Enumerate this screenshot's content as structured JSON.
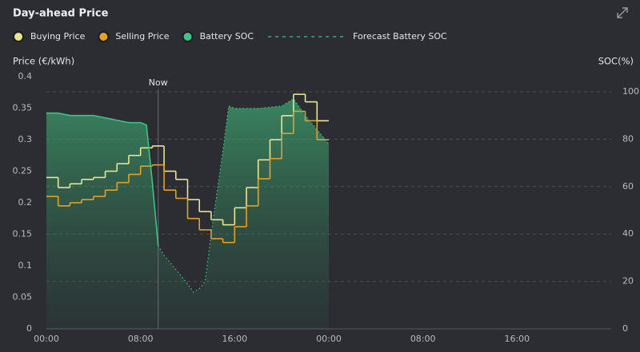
{
  "chart_data": {
    "type": "line",
    "title": "Day-ahead Price",
    "ylabel": "Price (€/kWh)",
    "y2label": "SOC(%)",
    "xlim": [
      0,
      48
    ],
    "xticks": [
      {
        "value": 0,
        "label": "00:00"
      },
      {
        "value": 8,
        "label": "08:00"
      },
      {
        "value": 16,
        "label": "16:00"
      },
      {
        "value": 24,
        "label": "00:00"
      },
      {
        "value": 32,
        "label": "08:00"
      },
      {
        "value": 40,
        "label": "16:00"
      }
    ],
    "ylim": [
      0,
      0.4
    ],
    "yticks": [
      0,
      0.05,
      0.1,
      0.15,
      0.2,
      0.25,
      0.3,
      0.35,
      0.4
    ],
    "y2lim": [
      0,
      106.4
    ],
    "y2ticks": [
      0,
      20,
      40,
      60,
      80,
      100
    ],
    "grid": true,
    "annotation": {
      "x": 9.5,
      "label": "Now"
    },
    "series": [
      {
        "name": "Buying Price",
        "color": "#e9e68c",
        "step": true,
        "x": [
          0,
          1,
          2,
          3,
          4,
          5,
          6,
          7,
          8,
          9,
          10,
          11,
          12,
          13,
          14,
          15,
          16,
          17,
          18,
          19,
          20,
          21,
          22,
          23
        ],
        "values": [
          0.24,
          0.224,
          0.23,
          0.237,
          0.24,
          0.25,
          0.262,
          0.275,
          0.287,
          0.29,
          0.25,
          0.237,
          0.205,
          0.186,
          0.173,
          0.165,
          0.192,
          0.224,
          0.268,
          0.3,
          0.338,
          0.372,
          0.36,
          0.33
        ]
      },
      {
        "name": "Selling Price",
        "color": "#e3a226",
        "step": true,
        "x": [
          0,
          1,
          2,
          3,
          4,
          5,
          6,
          7,
          8,
          9,
          10,
          11,
          12,
          13,
          14,
          15,
          16,
          17,
          18,
          19,
          20,
          21,
          22,
          23
        ],
        "values": [
          0.21,
          0.195,
          0.2,
          0.205,
          0.21,
          0.22,
          0.232,
          0.245,
          0.258,
          0.26,
          0.22,
          0.207,
          0.175,
          0.157,
          0.143,
          0.137,
          0.162,
          0.195,
          0.238,
          0.27,
          0.31,
          0.345,
          0.33,
          0.3
        ]
      },
      {
        "name": "Battery SOC",
        "color": "#3fc284",
        "axis": "y2",
        "x": [
          0,
          1,
          2,
          3,
          4,
          5,
          6,
          7,
          8,
          8.5,
          9,
          9.5
        ],
        "values": [
          91,
          91,
          90,
          90,
          90,
          89,
          88,
          87,
          87,
          86,
          62,
          35
        ]
      },
      {
        "name": "Forecast Battery SOC",
        "color": "#3fc284",
        "axis": "y2",
        "dashed": true,
        "x": [
          9.5,
          10,
          11,
          12,
          12.5,
          13,
          13.5,
          14,
          15,
          15.5,
          16,
          18,
          20,
          21,
          22,
          23,
          24
        ],
        "values": [
          35,
          31,
          25,
          19,
          15.5,
          17,
          20,
          40,
          75,
          94,
          93,
          93,
          94,
          97,
          90,
          84,
          78
        ]
      }
    ]
  }
}
